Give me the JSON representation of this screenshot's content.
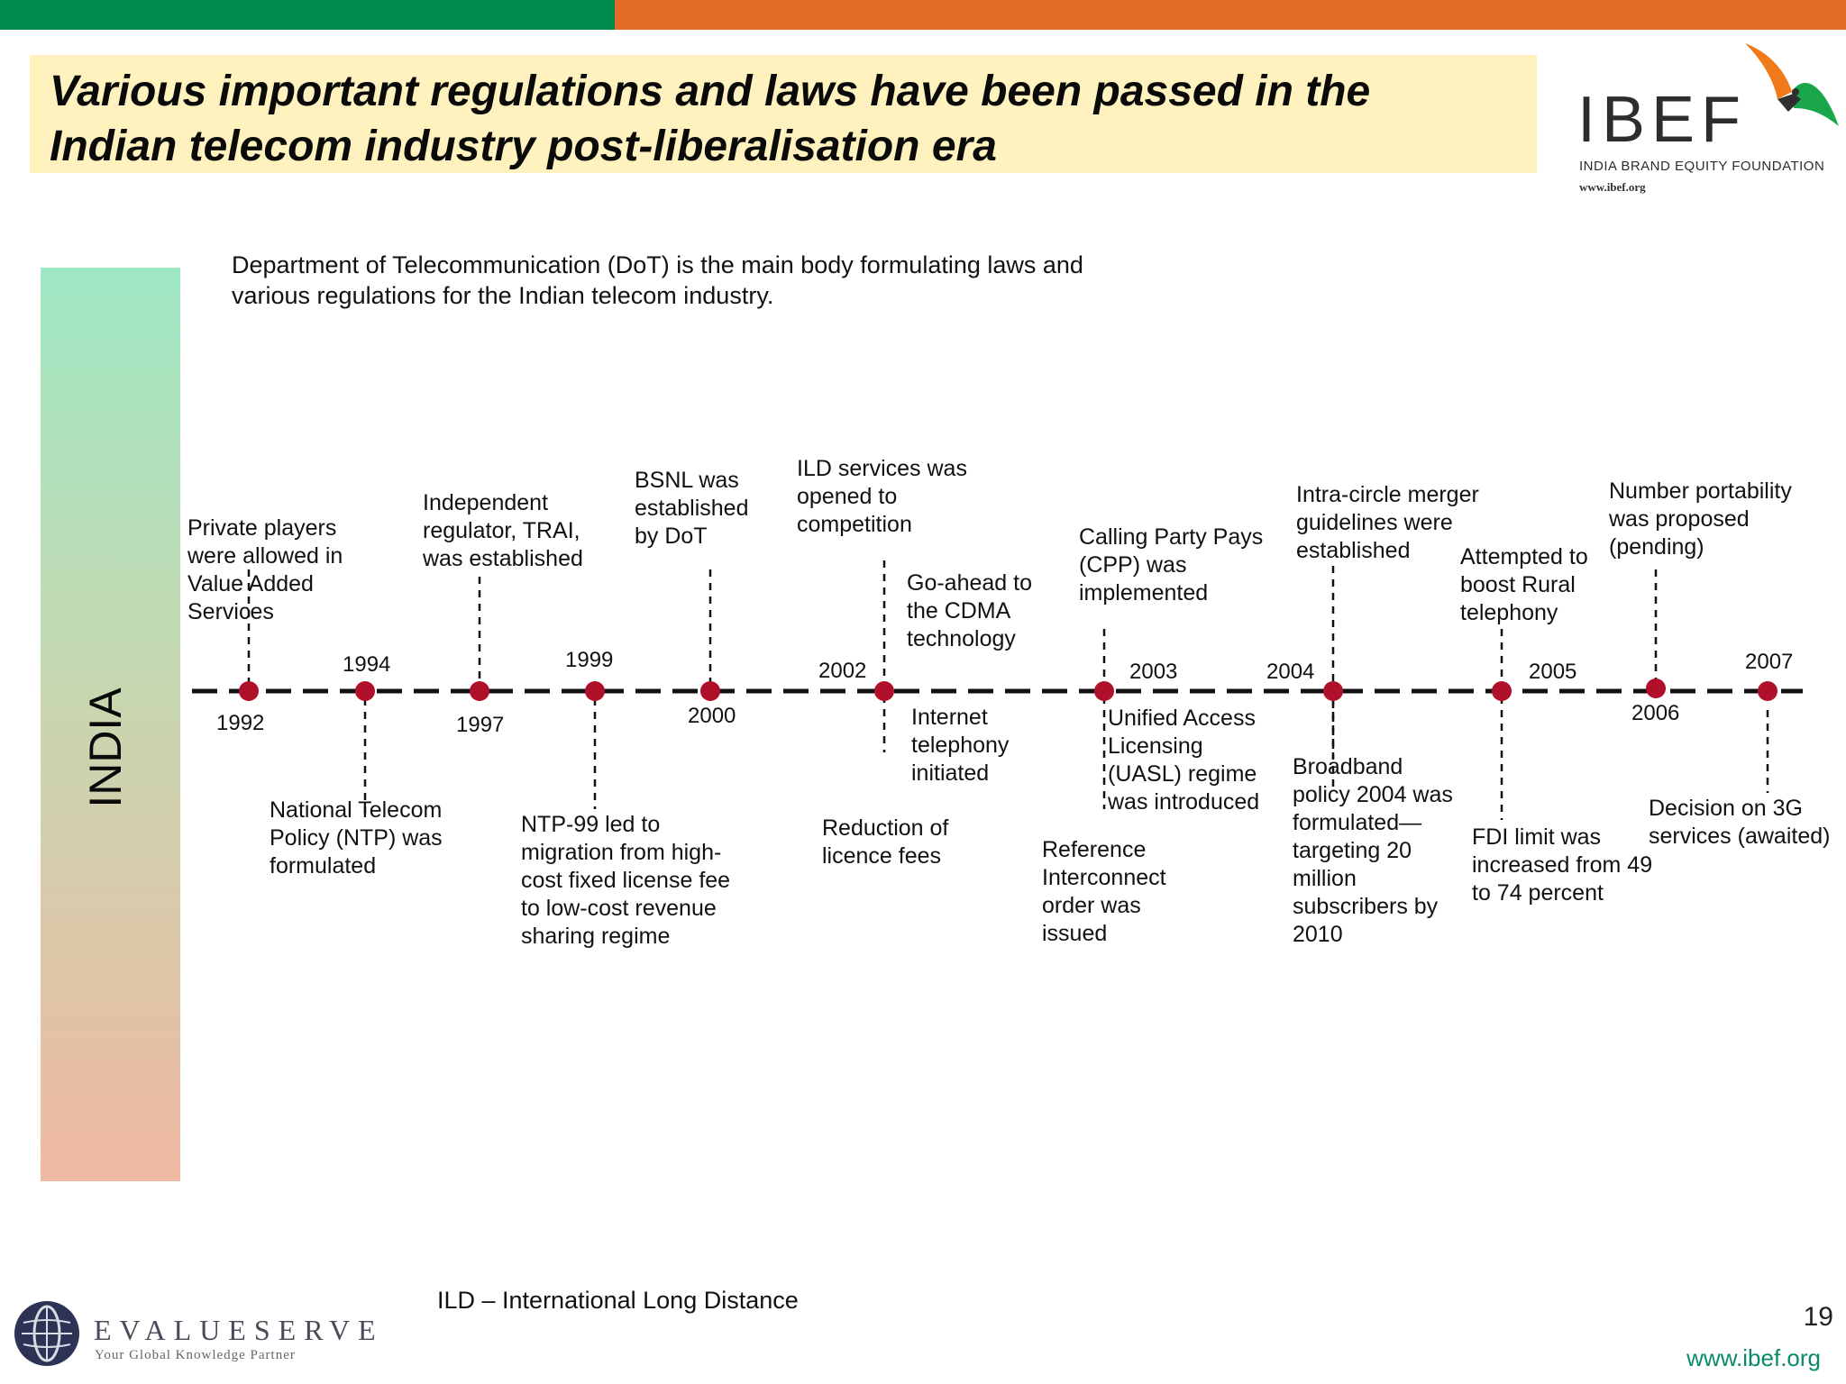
{
  "title": "Various important regulations and laws have been passed in the Indian telecom industry post-liberalisation era",
  "logo": {
    "name": "IBEF",
    "tagline": "INDIA BRAND EQUITY FOUNDATION",
    "url": "www.ibef.org"
  },
  "side_label": "INDIA",
  "intro": "Department of Telecommunication (DoT) is the main body formulating laws and various regulations for the Indian telecom industry.",
  "years": [
    "1992",
    "1994",
    "1997",
    "1999",
    "2000",
    "2002",
    "2003",
    "2004",
    "2005",
    "2006",
    "2007"
  ],
  "events": [
    {
      "year": "1992",
      "text": "Private players were allowed in Value Added Services"
    },
    {
      "year": "1994",
      "text": "National Telecom Policy (NTP) was formulated"
    },
    {
      "year": "1997",
      "text": "Independent regulator, TRAI, was established"
    },
    {
      "year": "1999",
      "text": "NTP-99 led to migration from high-cost fixed license fee to low-cost revenue sharing regime"
    },
    {
      "year": "2000",
      "text": "BSNL was established by DoT"
    },
    {
      "year": "2002",
      "text": "ILD services was opened to competition"
    },
    {
      "year": "2002",
      "text": "Go-ahead to the CDMA technology"
    },
    {
      "year": "2002",
      "text": "Internet telephony initiated"
    },
    {
      "year": "2002",
      "text": "Reduction of licence fees"
    },
    {
      "year": "2003",
      "text": "Calling Party Pays (CPP) was implemented"
    },
    {
      "year": "2003",
      "text": "Unified Access Licensing (UASL) regime was introduced"
    },
    {
      "year": "2003",
      "text": "Reference Interconnect order was issued"
    },
    {
      "year": "2004",
      "text": "Intra-circle merger guidelines were established"
    },
    {
      "year": "2004",
      "text": "Broadband policy 2004 was formulated—targeting 20 million subscribers by 2010"
    },
    {
      "year": "2005",
      "text": "Attempted to boost Rural telephony"
    },
    {
      "year": "2005",
      "text": "FDI limit was increased from 49 to 74 percent"
    },
    {
      "year": "2006",
      "text": "Number portability was proposed (pending)"
    },
    {
      "year": "2007",
      "text": "Decision on 3G services (awaited)"
    }
  ],
  "footnote": "ILD – International Long Distance",
  "footer_logo": {
    "name": "EVALUESERVE",
    "tagline": "Your Global Knowledge Partner"
  },
  "page_number": "19",
  "footer_url": "www.ibef.org",
  "colors": {
    "green_bar": "#008a4c",
    "orange_bar": "#e06a26",
    "title_bg": "#fff2bf",
    "dot": "#b0102a",
    "link": "#0a8a6a"
  }
}
